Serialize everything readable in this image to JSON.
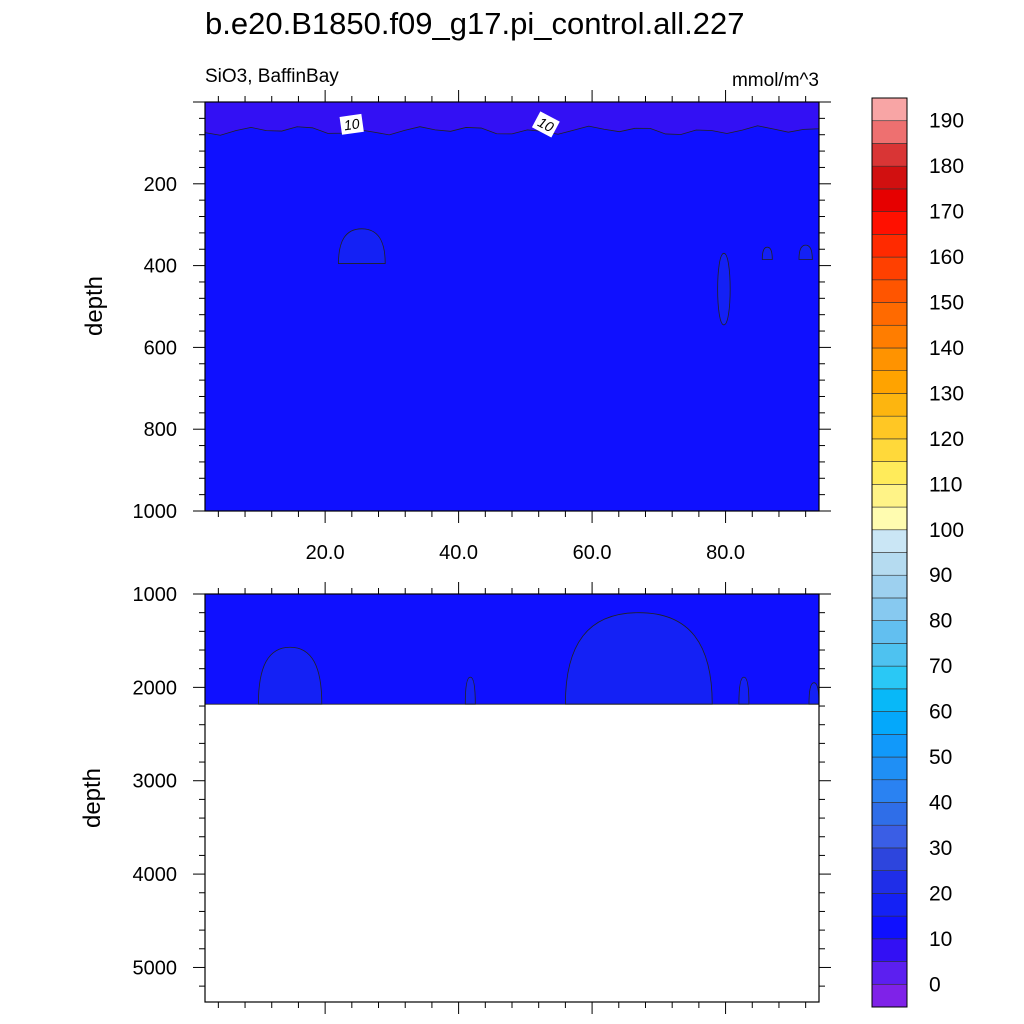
{
  "chart_data": [
    {
      "type": "contour",
      "title": "b.e20.B1850.f09_g17.pi_control.all.227",
      "left_subtitle": "SiO3, BaffinBay",
      "right_subtitle": "mmol/m^3",
      "ylabel": "depth",
      "xlim": [
        2,
        94
      ],
      "ylim": [
        1000,
        0
      ],
      "y_reversed": true,
      "x_ticks": [
        20,
        40,
        60,
        80
      ],
      "x_tick_labels": [
        "20.0",
        "40.0",
        "60.0",
        "80.0"
      ],
      "y_ticks": [
        200,
        400,
        600,
        800,
        1000
      ],
      "y_tick_labels": [
        "200",
        "400",
        "600",
        "800",
        "1000"
      ],
      "background_level_range": [
        10,
        15
      ],
      "features": [
        {
          "kind": "surface band",
          "level_range": [
            5,
            10
          ],
          "depth_range": [
            0,
            70
          ]
        },
        {
          "kind": "patch",
          "level_range": [
            15,
            20
          ],
          "x_range": [
            22,
            29
          ],
          "depth_range": [
            310,
            395
          ]
        },
        {
          "kind": "patch",
          "level_range": [
            15,
            20
          ],
          "x_range": [
            78.5,
            81
          ],
          "depth_range": [
            370,
            545
          ]
        },
        {
          "kind": "patch",
          "level_range": [
            15,
            20
          ],
          "x_range": [
            85.5,
            87
          ],
          "depth_range": [
            355,
            385
          ]
        },
        {
          "kind": "patch",
          "level_range": [
            15,
            20
          ],
          "x_range": [
            91,
            93
          ],
          "depth_range": [
            350,
            385
          ]
        }
      ],
      "contour_labels": [
        "10",
        "10"
      ]
    },
    {
      "type": "contour",
      "ylabel": "depth",
      "xlim": [
        2,
        94
      ],
      "ylim": [
        5370,
        1000
      ],
      "y_reversed": true,
      "y_ticks": [
        1000,
        2000,
        3000,
        4000,
        5000
      ],
      "y_tick_labels": [
        "1000",
        "2000",
        "3000",
        "4000",
        "5000"
      ],
      "data_max_depth": 2180,
      "background_level_range": [
        10,
        15
      ],
      "features": [
        {
          "kind": "patch",
          "level_range": [
            15,
            20
          ],
          "x_range": [
            10,
            19.5
          ],
          "depth_range": [
            1570,
            2180
          ]
        },
        {
          "kind": "patch",
          "level_range": [
            15,
            20
          ],
          "x_range": [
            41,
            42.5
          ],
          "depth_range": [
            1890,
            2180
          ]
        },
        {
          "kind": "patch",
          "level_range": [
            15,
            20
          ],
          "x_range": [
            56,
            78
          ],
          "depth_range": [
            1200,
            2180
          ]
        },
        {
          "kind": "patch",
          "level_range": [
            15,
            20
          ],
          "x_range": [
            82,
            83.5
          ],
          "depth_range": [
            1890,
            2180
          ]
        },
        {
          "kind": "patch",
          "level_range": [
            15,
            20
          ],
          "x_range": [
            92.5,
            94
          ],
          "depth_range": [
            1950,
            2180
          ]
        }
      ]
    }
  ],
  "colorbar": {
    "levels": [
      -5,
      0,
      5,
      10,
      15,
      20,
      25,
      30,
      35,
      40,
      45,
      50,
      55,
      60,
      65,
      70,
      75,
      80,
      85,
      90,
      95,
      100,
      105,
      110,
      115,
      120,
      125,
      130,
      135,
      140,
      145,
      150,
      155,
      160,
      165,
      170,
      175,
      180,
      185,
      190,
      195
    ],
    "tick_values": [
      0,
      10,
      20,
      30,
      40,
      50,
      60,
      70,
      80,
      90,
      100,
      110,
      120,
      130,
      140,
      150,
      160,
      170,
      180,
      190
    ],
    "tick_labels": [
      "0",
      "10",
      "20",
      "30",
      "40",
      "50",
      "60",
      "70",
      "80",
      "90",
      "100",
      "110",
      "120",
      "130",
      "140",
      "150",
      "160",
      "170",
      "180",
      "190"
    ],
    "colors": [
      "#7f22e8",
      "#5c1ff0",
      "#3310f4",
      "#0f10ff",
      "#1421f5",
      "#1f2ee8",
      "#2d45dd",
      "#3a5ee5",
      "#2f6ee8",
      "#2a82f2",
      "#1f8ff5",
      "#1199fa",
      "#04a8fb",
      "#08b8f8",
      "#2ac8f5",
      "#4ec2f0",
      "#62bff0",
      "#87c9f0",
      "#9dd0ef",
      "#b5dbf0",
      "#cae6f5",
      "#fffcb0",
      "#fff387",
      "#ffeb5a",
      "#ffd93a",
      "#ffc724",
      "#fdb50f",
      "#ffa300",
      "#ff9300",
      "#ff7d00",
      "#ff6a00",
      "#ff5500",
      "#ff4000",
      "#ff2a00",
      "#ff1000",
      "#e60000",
      "#d11010",
      "#d93535",
      "#ee7070",
      "#f8a5a5"
    ]
  }
}
